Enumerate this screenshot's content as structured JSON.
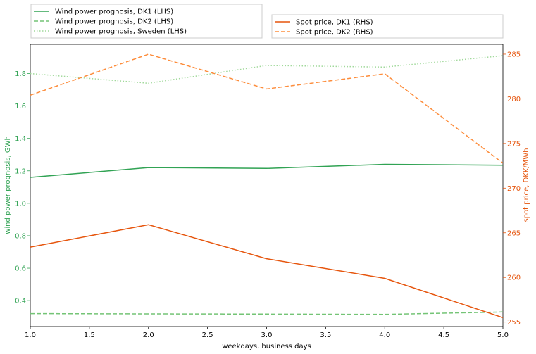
{
  "chart_data": {
    "type": "line",
    "xlabel": "weekdays, business days",
    "ylabel_left": "wind power prognosis, GWh",
    "ylabel_right": "spot price, DKK/MWh",
    "x": [
      1,
      2,
      3,
      4,
      5
    ],
    "xlim": [
      1.0,
      5.0
    ],
    "ylim_left": [
      0.24,
      1.98
    ],
    "ylim_right": [
      254.5,
      286.1
    ],
    "x_ticks": [
      "1.0",
      "1.5",
      "2.0",
      "2.5",
      "3.0",
      "3.5",
      "4.0",
      "4.5",
      "5.0"
    ],
    "y_left_ticks": [
      "0.4",
      "0.6",
      "0.8",
      "1.0",
      "1.2",
      "1.4",
      "1.6",
      "1.8"
    ],
    "y_right_ticks": [
      "255",
      "260",
      "265",
      "270",
      "275",
      "280",
      "285"
    ],
    "grid": false,
    "colors": {
      "left_axis": "#31a354",
      "right_axis": "#e6550d",
      "dk1_wind": "#31a354",
      "dk2_wind": "#74c476",
      "sweden_wind": "#a1d99b",
      "dk1_price": "#e6550d",
      "dk2_price": "#fd8d3c"
    },
    "series": [
      {
        "name": "Wind power prognosis, DK1 (LHS)",
        "axis": "left",
        "style": "solid",
        "color": "#31a354",
        "values": [
          1.16,
          1.22,
          1.215,
          1.24,
          1.235
        ]
      },
      {
        "name": "Wind power prognosis, DK2 (LHS)",
        "axis": "left",
        "style": "dashed",
        "color": "#74c476",
        "values": [
          0.32,
          0.318,
          0.317,
          0.315,
          0.33
        ]
      },
      {
        "name": "Wind power prognosis, Sweden (LHS)",
        "axis": "left",
        "style": "dotted",
        "color": "#a1d99b",
        "values": [
          1.8,
          1.74,
          1.85,
          1.84,
          1.91
        ]
      },
      {
        "name": "Spot price, DK1 (RHS)",
        "axis": "right",
        "style": "solid",
        "color": "#e6550d",
        "values": [
          263.4,
          265.9,
          262.1,
          259.9,
          255.5
        ]
      },
      {
        "name": "Spot price, DK2 (RHS)",
        "axis": "right",
        "style": "dashed",
        "color": "#fd8d3c",
        "values": [
          280.4,
          285.0,
          281.1,
          282.8,
          272.8
        ]
      }
    ],
    "legend_left": [
      "Wind power prognosis, DK1 (LHS)",
      "Wind power prognosis, DK2 (LHS)",
      "Wind power prognosis, Sweden (LHS)"
    ],
    "legend_right": [
      "Spot price, DK1 (RHS)",
      "Spot price, DK2 (RHS)"
    ],
    "legend_placement": "above plot, two boxes (left and right)"
  }
}
